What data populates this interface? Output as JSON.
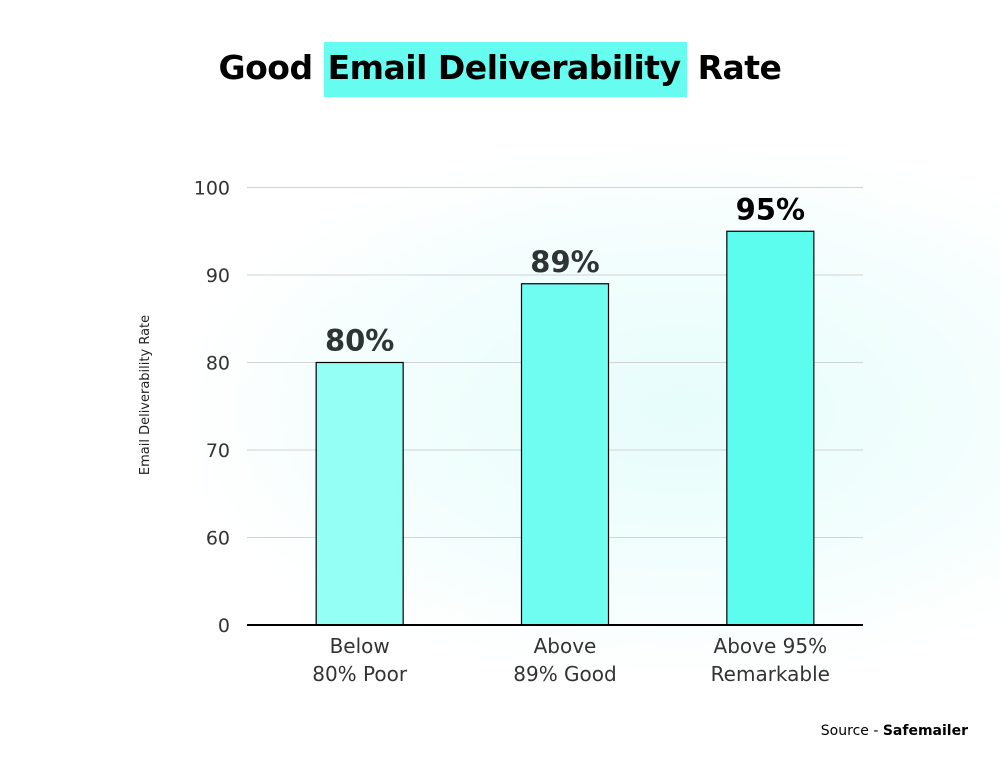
{
  "title": {
    "prefix": "Good",
    "highlight": "Email Deliverability",
    "suffix": "Rate",
    "highlight_color": "#66fcf0"
  },
  "source": {
    "label": "Source -",
    "name": "Safemailer"
  },
  "chart_data": {
    "type": "bar",
    "ylabel": "Email Deliverability Rate",
    "xlabel": "",
    "categories": [
      [
        "Below",
        "80% Poor"
      ],
      [
        "Above",
        "89% Good"
      ],
      [
        "Above 95%",
        "Remarkable"
      ]
    ],
    "values": [
      80,
      89,
      95
    ],
    "data_labels": [
      "80%",
      "89%",
      "95%"
    ],
    "bar_colors": [
      "#94fff4",
      "#70fdf1",
      "#5cfdef"
    ],
    "yticks": [
      0,
      60,
      70,
      80,
      90,
      100
    ],
    "ylim": [
      0,
      100
    ],
    "axis_break": "0 shown directly below 60",
    "grid": true
  }
}
